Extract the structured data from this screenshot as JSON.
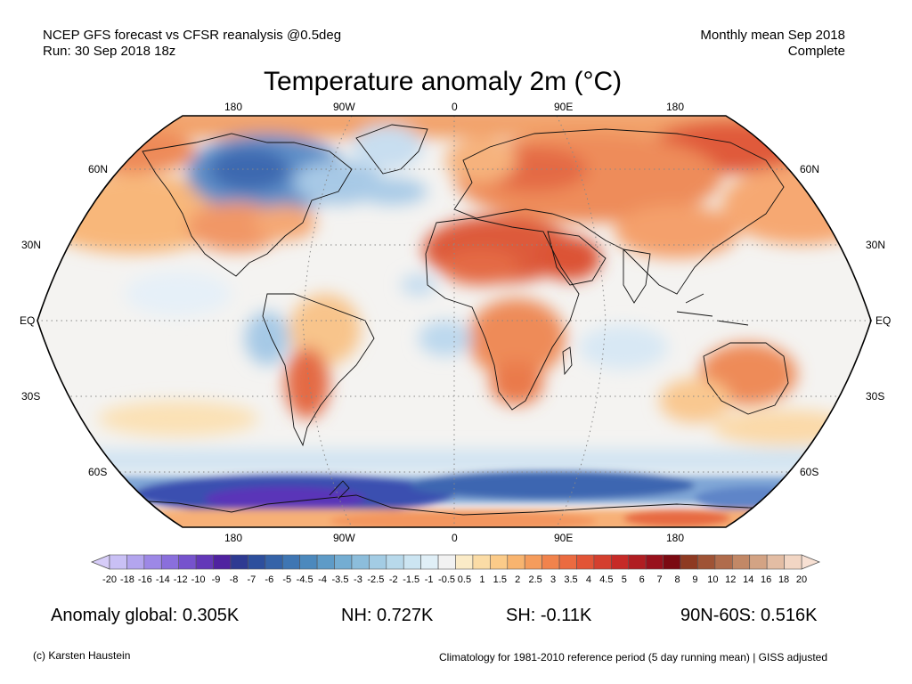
{
  "header": {
    "left_line1": "NCEP GFS forecast vs CFSR reanalysis @0.5deg",
    "left_line2": "Run: 30 Sep 2018 18z",
    "right_line1": "Monthly mean Sep 2018",
    "right_line2": "Complete",
    "title": "Temperature anomaly 2m (°C)"
  },
  "map": {
    "lon_labels": [
      "180",
      "90W",
      "0",
      "90E",
      "180"
    ],
    "lat_labels_left": [
      "60N",
      "30N",
      "EQ",
      "30S",
      "60S"
    ],
    "lat_labels_right": [
      "60N",
      "30N",
      "EQ",
      "30S",
      "60S"
    ]
  },
  "colorbar": {
    "labels": [
      "-20",
      "-18",
      "-16",
      "-14",
      "-12",
      "-10",
      "-9",
      "-8",
      "-7",
      "-6",
      "-5",
      "-4.5",
      "-4",
      "-3.5",
      "-3",
      "-2.5",
      "-2",
      "-1.5",
      "-1",
      "-0.5",
      "0.5",
      "1",
      "1.5",
      "2",
      "2.5",
      "3",
      "3.5",
      "4",
      "4.5",
      "5",
      "6",
      "7",
      "8",
      "9",
      "10",
      "12",
      "14",
      "16",
      "18",
      "20"
    ],
    "colors": [
      "#c9c0f5",
      "#b3a5ee",
      "#9d88e6",
      "#8a6fdc",
      "#7653cd",
      "#6338b8",
      "#4f22a0",
      "#2e3a92",
      "#2d4f9d",
      "#3563a8",
      "#3f76b3",
      "#4c89bd",
      "#5e9bc7",
      "#74add2",
      "#8cbddb",
      "#a3cce4",
      "#b8d9eb",
      "#cce5f2",
      "#e0eff7",
      "#f2f2f2",
      "#fbebc7",
      "#fbdca6",
      "#fbcb89",
      "#f8b46f",
      "#f59c5c",
      "#f1834c",
      "#eb6b40",
      "#e25436",
      "#d43f2e",
      "#c62a27",
      "#b01d21",
      "#98111c",
      "#7b0a12",
      "#8e3a22",
      "#9f5335",
      "#b06c4c",
      "#c28866",
      "#d3a384",
      "#e3bda4",
      "#f2d6c4"
    ]
  },
  "stats": {
    "global": "Anomaly global: 0.305K",
    "nh": "NH: 0.727K",
    "sh": "SH: -0.11K",
    "polar": "90N-60S: 0.516K"
  },
  "footer": {
    "left": "(c) Karsten Haustein",
    "right": "Climatology for 1981-2010 reference period (5 day running mean) | GISS adjusted"
  }
}
